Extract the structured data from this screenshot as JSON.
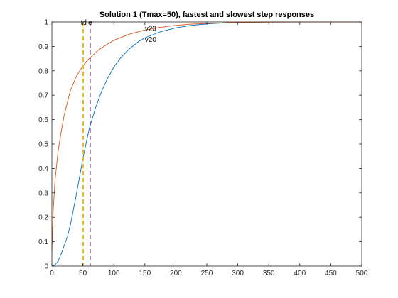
{
  "chart_data": {
    "type": "line",
    "title": "Solution 1 (Tmax=50), fastest and slowest step responses",
    "xlabel": "",
    "ylabel": "",
    "xlim": [
      0,
      500
    ],
    "ylim": [
      0,
      1
    ],
    "grid": false,
    "x_ticks": [
      0,
      50,
      100,
      150,
      200,
      250,
      300,
      350,
      400,
      450,
      500
    ],
    "y_ticks": [
      0,
      0.1,
      0.2,
      0.3,
      0.4,
      0.5,
      0.6,
      0.7,
      0.8,
      0.9,
      1
    ],
    "series": [
      {
        "name": "v20",
        "color": "#0072BD",
        "x": [
          0,
          5,
          10,
          15,
          20,
          25,
          30,
          40,
          50,
          60,
          70,
          80,
          90,
          100,
          110,
          125,
          140,
          150,
          175,
          200,
          225,
          250,
          275,
          300,
          325,
          350,
          400,
          450,
          500
        ],
        "values": [
          0,
          0.005,
          0.02,
          0.05,
          0.085,
          0.12,
          0.17,
          0.3,
          0.44,
          0.56,
          0.645,
          0.715,
          0.77,
          0.815,
          0.85,
          0.89,
          0.92,
          0.935,
          0.96,
          0.976,
          0.986,
          0.992,
          0.996,
          0.998,
          0.999,
          1,
          1,
          1,
          1
        ]
      },
      {
        "name": "v23",
        "color": "#D95319",
        "x": [
          0,
          2,
          5,
          10,
          15,
          20,
          30,
          40,
          50,
          60,
          75,
          90,
          100,
          125,
          150,
          175,
          200,
          225,
          250,
          300,
          350,
          400,
          450,
          500
        ],
        "values": [
          0.06,
          0.22,
          0.35,
          0.47,
          0.55,
          0.62,
          0.72,
          0.78,
          0.82,
          0.85,
          0.885,
          0.91,
          0.925,
          0.95,
          0.967,
          0.978,
          0.986,
          0.991,
          0.994,
          0.998,
          0.999,
          1,
          1,
          1
        ]
      }
    ],
    "vlines": [
      {
        "label": "td",
        "x": 50,
        "color": "#EDB120"
      },
      {
        "label": "",
        "x": 51,
        "color": "#EDB120"
      },
      {
        "label": "e",
        "x": 62,
        "color": "#7E2F8E"
      }
    ],
    "annotations": [
      {
        "text": "v23",
        "x": 150,
        "y": 0.975
      },
      {
        "text": "v20",
        "x": 150,
        "y": 0.93
      }
    ]
  }
}
